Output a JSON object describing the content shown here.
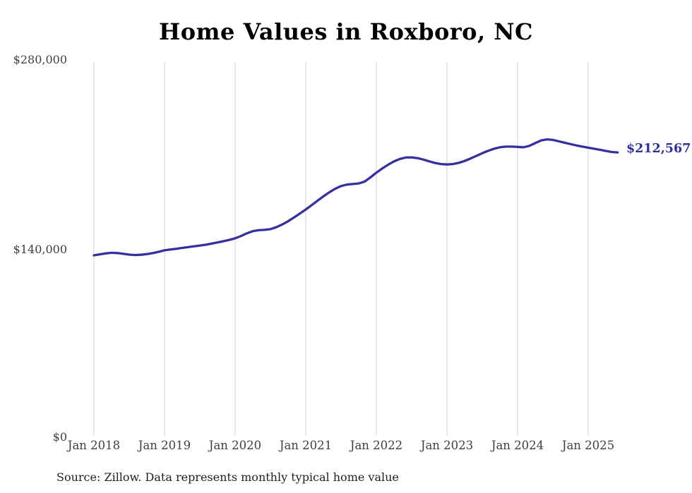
{
  "title": "Home Values in Roxboro, NC",
  "source_note": "Source: Zillow. Data represents monthly typical home value",
  "colors": {
    "line": "#34319f",
    "end_label": "#2d2f9e",
    "grid": "#cfcfcf",
    "title_text": "#000000",
    "axis_text": "#3f3f3f"
  },
  "chart_data": {
    "type": "line",
    "title": "Home Values in Roxboro, NC",
    "xlabel": "",
    "ylabel": "",
    "ylim": [
      0,
      280000
    ],
    "y_ticks": [
      0,
      140000,
      280000
    ],
    "y_tick_labels": [
      "$0",
      "$140,000",
      "$280,000"
    ],
    "x_tick_labels": [
      "Jan 2018",
      "Jan 2019",
      "Jan 2020",
      "Jan 2021",
      "Jan 2022",
      "Jan 2023",
      "Jan 2024",
      "Jan 2025"
    ],
    "grid": "vertical-only",
    "legend": "none",
    "end_value": 212567,
    "end_value_label": "$212,567",
    "x_monthly": [
      "2018-01",
      "2018-02",
      "2018-03",
      "2018-04",
      "2018-05",
      "2018-06",
      "2018-07",
      "2018-08",
      "2018-09",
      "2018-10",
      "2018-11",
      "2018-12",
      "2019-01",
      "2019-02",
      "2019-03",
      "2019-04",
      "2019-05",
      "2019-06",
      "2019-07",
      "2019-08",
      "2019-09",
      "2019-10",
      "2019-11",
      "2019-12",
      "2020-01",
      "2020-02",
      "2020-03",
      "2020-04",
      "2020-05",
      "2020-06",
      "2020-07",
      "2020-08",
      "2020-09",
      "2020-10",
      "2020-11",
      "2020-12",
      "2021-01",
      "2021-02",
      "2021-03",
      "2021-04",
      "2021-05",
      "2021-06",
      "2021-07",
      "2021-08",
      "2021-09",
      "2021-10",
      "2021-11",
      "2021-12",
      "2022-01",
      "2022-02",
      "2022-03",
      "2022-04",
      "2022-05",
      "2022-06",
      "2022-07",
      "2022-08",
      "2022-09",
      "2022-10",
      "2022-11",
      "2022-12",
      "2023-01",
      "2023-02",
      "2023-03",
      "2023-04",
      "2023-05",
      "2023-06",
      "2023-07",
      "2023-08",
      "2023-09",
      "2023-10",
      "2023-11",
      "2023-12",
      "2024-01",
      "2024-02",
      "2024-03",
      "2024-04",
      "2024-05",
      "2024-06",
      "2024-07",
      "2024-08",
      "2024-09",
      "2024-10",
      "2024-11",
      "2024-12",
      "2025-01",
      "2025-02",
      "2025-03",
      "2025-04",
      "2025-05",
      "2025-06"
    ],
    "series": [
      {
        "name": "Typical home value",
        "values": [
          135800,
          136500,
          137200,
          137700,
          137500,
          136900,
          136300,
          136000,
          136200,
          136700,
          137400,
          138400,
          139500,
          140100,
          140700,
          141300,
          141900,
          142500,
          143100,
          143700,
          144500,
          145400,
          146300,
          147300,
          148500,
          150200,
          152200,
          153800,
          154500,
          154800,
          155300,
          156800,
          158800,
          161200,
          164000,
          167000,
          170000,
          173200,
          176500,
          179800,
          182800,
          185500,
          187500,
          188600,
          189000,
          189400,
          190800,
          194000,
          197500,
          200600,
          203400,
          205900,
          207700,
          208800,
          208900,
          208300,
          207200,
          205900,
          204700,
          203900,
          203600,
          203900,
          204800,
          206200,
          208000,
          210000,
          212000,
          213800,
          215300,
          216400,
          216900,
          216900,
          216700,
          216400,
          217500,
          219500,
          221500,
          222300,
          221900,
          220900,
          219800,
          218800,
          217800,
          216900,
          216100,
          215300,
          214500,
          213700,
          212900,
          212567
        ]
      }
    ]
  }
}
